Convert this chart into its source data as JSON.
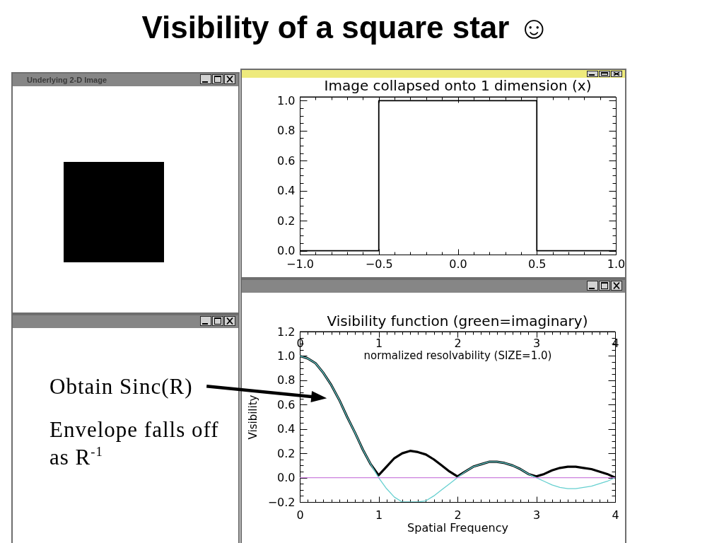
{
  "chart_data": [
    {
      "type": "other",
      "title": "Visibility of a square star ☺"
    },
    {
      "type": "other",
      "title": "Underlying 2-D Image"
    },
    {
      "type": "step",
      "title": "Image collapsed onto 1 dimension (x)",
      "x": [
        -1,
        -0.5,
        0.5,
        1
      ],
      "values": [
        0,
        1,
        0,
        0
      ],
      "color": "#000000",
      "xlim": [
        -1,
        1
      ],
      "ylim": [
        -0.025,
        1.025
      ],
      "xticks": [
        {
          "value": -1,
          "label": "−1.0"
        },
        {
          "value": -0.9,
          "label": null
        },
        {
          "value": -0.8,
          "label": null
        },
        {
          "value": -0.7,
          "label": null
        },
        {
          "value": -0.6,
          "label": null
        },
        {
          "value": -0.5,
          "label": "−0.5"
        },
        {
          "value": -0.4,
          "label": null
        },
        {
          "value": -0.3,
          "label": null
        },
        {
          "value": -0.2,
          "label": null
        },
        {
          "value": -0.1,
          "label": null
        },
        {
          "value": 0,
          "label": "0.0"
        },
        {
          "value": 0.1,
          "label": null
        },
        {
          "value": 0.2,
          "label": null
        },
        {
          "value": 0.3,
          "label": null
        },
        {
          "value": 0.4,
          "label": null
        },
        0.5,
        {
          "value": 0.6,
          "label": null
        },
        {
          "value": 0.7,
          "label": null
        },
        {
          "value": 0.8,
          "label": null
        },
        {
          "value": 0.9,
          "label": null
        },
        {
          "value": 1,
          "label": "1.0"
        }
      ],
      "yticks": [
        {
          "value": 0,
          "label": "0.0"
        },
        {
          "value": 0.05,
          "label": null
        },
        {
          "value": 0.1,
          "label": null
        },
        {
          "value": 0.15,
          "label": null
        },
        0.2,
        {
          "value": 0.25,
          "label": null
        },
        {
          "value": 0.3,
          "label": null
        },
        {
          "value": 0.35,
          "label": null
        },
        0.4,
        {
          "value": 0.45,
          "label": null
        },
        {
          "value": 0.5,
          "label": null
        },
        {
          "value": 0.55,
          "label": null
        },
        0.6,
        {
          "value": 0.65,
          "label": null
        },
        {
          "value": 0.7,
          "label": null
        },
        {
          "value": 0.75,
          "label": null
        },
        0.8,
        {
          "value": 0.85,
          "label": null
        },
        {
          "value": 0.9,
          "label": null
        },
        {
          "value": 0.95,
          "label": null
        },
        {
          "value": 1,
          "label": "1.0"
        }
      ]
    },
    {
      "type": "other",
      "annotations": [
        "Obtain Sinc(R)",
        "Envelope falls off as R$^{-1}$"
      ]
    },
    {
      "type": "line",
      "title": "Visibility function (green=imaginary)",
      "xlabel": "Spatial Frequency",
      "ylabel": "Visibility",
      "x2label": "normalized resolvability (SIZE=1.0)",
      "x": [
        0,
        0.1,
        0.2,
        0.3,
        0.4,
        0.5,
        0.6,
        0.7,
        0.8,
        0.9,
        1,
        1.1,
        1.2,
        1.3,
        1.4,
        1.5,
        1.6,
        1.7,
        1.8,
        1.9,
        2,
        2.1,
        2.2,
        2.3,
        2.4,
        2.5,
        2.6,
        2.7,
        2.8,
        2.9,
        3,
        3.1,
        3.2,
        3.3,
        3.4,
        3.5,
        3.6,
        3.7,
        3.8,
        3.9,
        4
      ],
      "series": [
        {
          "color": "#000000",
          "values": [
            1,
            0.98,
            0.94,
            0.86,
            0.76,
            0.64,
            0.5,
            0.37,
            0.23,
            0.11,
            0.02,
            0.09,
            0.16,
            0.2,
            0.22,
            0.21,
            0.19,
            0.15,
            0.1,
            0.05,
            0.01,
            0.05,
            0.09,
            0.11,
            0.13,
            0.13,
            0.12,
            0.1,
            0.07,
            0.03,
            0.01,
            0.03,
            0.06,
            0.08,
            0.09,
            0.09,
            0.08,
            0.07,
            0.05,
            0.03,
            0
          ]
        },
        {
          "color": "#66d0d0",
          "values": [
            1,
            0.98,
            0.94,
            0.86,
            0.76,
            0.64,
            0.5,
            0.37,
            0.23,
            0.11,
            0,
            -0.09,
            -0.16,
            -0.2,
            -0.2,
            -0.2,
            -0.19,
            -0.15,
            -0.1,
            -0.05,
            0,
            0.05,
            0.09,
            0.11,
            0.13,
            0.13,
            0.12,
            0.1,
            0.07,
            0.03,
            0,
            -0.03,
            -0.06,
            -0.08,
            -0.09,
            -0.09,
            -0.08,
            -0.07,
            -0.05,
            -0.03,
            0
          ]
        },
        {
          "color": "#cc80dd",
          "x": [
            0,
            4
          ],
          "values": [
            0,
            0
          ]
        }
      ],
      "xlim": [
        0,
        4
      ],
      "ylim": [
        -0.2,
        1.2
      ],
      "xticks": [
        0,
        {
          "value": 0.1,
          "label": null
        },
        {
          "value": 0.2,
          "label": null
        },
        {
          "value": 0.3,
          "label": null
        },
        {
          "value": 0.4,
          "label": null
        },
        {
          "value": 0.5,
          "label": null
        },
        {
          "value": 0.6,
          "label": null
        },
        {
          "value": 0.7,
          "label": null
        },
        {
          "value": 0.8,
          "label": null
        },
        {
          "value": 0.9,
          "label": null
        },
        1,
        {
          "value": 1.1,
          "label": null
        },
        {
          "value": 1.2,
          "label": null
        },
        {
          "value": 1.3,
          "label": null
        },
        {
          "value": 1.4,
          "label": null
        },
        {
          "value": 1.5,
          "label": null
        },
        {
          "value": 1.6,
          "label": null
        },
        {
          "value": 1.7,
          "label": null
        },
        {
          "value": 1.8,
          "label": null
        },
        {
          "value": 1.9,
          "label": null
        },
        2,
        {
          "value": 2.1,
          "label": null
        },
        {
          "value": 2.2,
          "label": null
        },
        {
          "value": 2.3,
          "label": null
        },
        {
          "value": 2.4,
          "label": null
        },
        {
          "value": 2.5,
          "label": null
        },
        {
          "value": 2.6,
          "label": null
        },
        {
          "value": 2.7,
          "label": null
        },
        {
          "value": 2.8,
          "label": null
        },
        {
          "value": 2.9,
          "label": null
        },
        3,
        {
          "value": 3.1,
          "label": null
        },
        {
          "value": 3.2,
          "label": null
        },
        {
          "value": 3.3,
          "label": null
        },
        {
          "value": 3.4,
          "label": null
        },
        {
          "value": 3.5,
          "label": null
        },
        {
          "value": 3.6,
          "label": null
        },
        {
          "value": 3.7,
          "label": null
        },
        {
          "value": 3.8,
          "label": null
        },
        {
          "value": 3.9,
          "label": null
        },
        4
      ],
      "x2lim": [
        0,
        4
      ],
      "x2ticks": [
        0,
        {
          "value": 0.1,
          "label": null
        },
        {
          "value": 0.2,
          "label": null
        },
        {
          "value": 0.3,
          "label": null
        },
        {
          "value": 0.4,
          "label": null
        },
        {
          "value": 0.5,
          "label": null
        },
        {
          "value": 0.6,
          "label": null
        },
        {
          "value": 0.7,
          "label": null
        },
        {
          "value": 0.8,
          "label": null
        },
        {
          "value": 0.9,
          "label": null
        },
        1,
        {
          "value": 1.1,
          "label": null
        },
        {
          "value": 1.2,
          "label": null
        },
        {
          "value": 1.3,
          "label": null
        },
        {
          "value": 1.4,
          "label": null
        },
        {
          "value": 1.5,
          "label": null
        },
        {
          "value": 1.6,
          "label": null
        },
        {
          "value": 1.7,
          "label": null
        },
        {
          "value": 1.8,
          "label": null
        },
        {
          "value": 1.9,
          "label": null
        },
        2,
        {
          "value": 2.1,
          "label": null
        },
        {
          "value": 2.2,
          "label": null
        },
        {
          "value": 2.3,
          "label": null
        },
        {
          "value": 2.4,
          "label": null
        },
        {
          "value": 2.5,
          "label": null
        },
        {
          "value": 2.6,
          "label": null
        },
        {
          "value": 2.7,
          "label": null
        },
        {
          "value": 2.8,
          "label": null
        },
        {
          "value": 2.9,
          "label": null
        },
        3,
        {
          "value": 3.1,
          "label": null
        },
        {
          "value": 3.2,
          "label": null
        },
        {
          "value": 3.3,
          "label": null
        },
        {
          "value": 3.4,
          "label": null
        },
        {
          "value": 3.5,
          "label": null
        },
        {
          "value": 3.6,
          "label": null
        },
        {
          "value": 3.7,
          "label": null
        },
        {
          "value": 3.8,
          "label": null
        },
        {
          "value": 3.9,
          "label": null
        },
        4
      ],
      "yticks": [
        {
          "value": -0.2,
          "label": "−0.2"
        },
        {
          "value": -0.15,
          "label": null
        },
        {
          "value": -0.1,
          "label": null
        },
        {
          "value": -0.05,
          "label": null
        },
        {
          "value": 0,
          "label": "0.0"
        },
        {
          "value": 0.05,
          "label": null
        },
        {
          "value": 0.1,
          "label": null
        },
        {
          "value": 0.15,
          "label": null
        },
        0.2,
        {
          "value": 0.25,
          "label": null
        },
        {
          "value": 0.3,
          "label": null
        },
        {
          "value": 0.35,
          "label": null
        },
        0.4,
        {
          "value": 0.45,
          "label": null
        },
        {
          "value": 0.5,
          "label": null
        },
        {
          "value": 0.55,
          "label": null
        },
        0.6,
        {
          "value": 0.65,
          "label": null
        },
        {
          "value": 0.7,
          "label": null
        },
        {
          "value": 0.75,
          "label": null
        },
        0.8,
        {
          "value": 0.85,
          "label": null
        },
        {
          "value": 0.9,
          "label": null
        },
        {
          "value": 0.95,
          "label": null
        },
        {
          "value": 1,
          "label": "1.0"
        },
        {
          "value": 1.05,
          "label": null
        },
        {
          "value": 1.1,
          "label": null
        },
        {
          "value": 1.15,
          "label": null
        },
        1.2
      ]
    }
  ]
}
